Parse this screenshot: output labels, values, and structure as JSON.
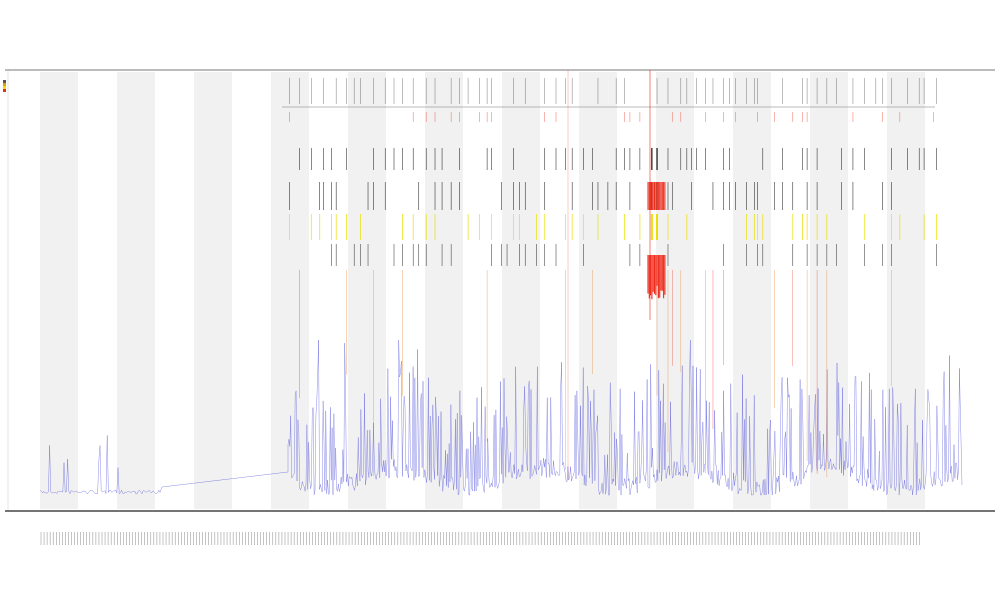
{
  "title_lines": [
    "",
    "",
    ""
  ],
  "legend": [
    {
      "label": "",
      "color": "#555555"
    },
    {
      "label": "",
      "color": "#e0a000"
    },
    {
      "label": "",
      "color": "#e8e000"
    },
    {
      "label": "",
      "color": "#e03020"
    }
  ],
  "colors": {
    "signal": "#3b3bd6",
    "band": "#f1f1f1",
    "track_black": "#111111",
    "track_yellow": "#e8e000",
    "track_red": "#ee2a1a",
    "track_orange": "#e07a20"
  },
  "chart_data": {
    "type": "line",
    "title": "",
    "xlabel": "",
    "ylabel": "",
    "grid": false,
    "legend_position": "top-left",
    "series": [
      {
        "values": []
      }
    ],
    "note_tracks": [
      "black",
      "yellow",
      "red",
      "orange"
    ]
  }
}
